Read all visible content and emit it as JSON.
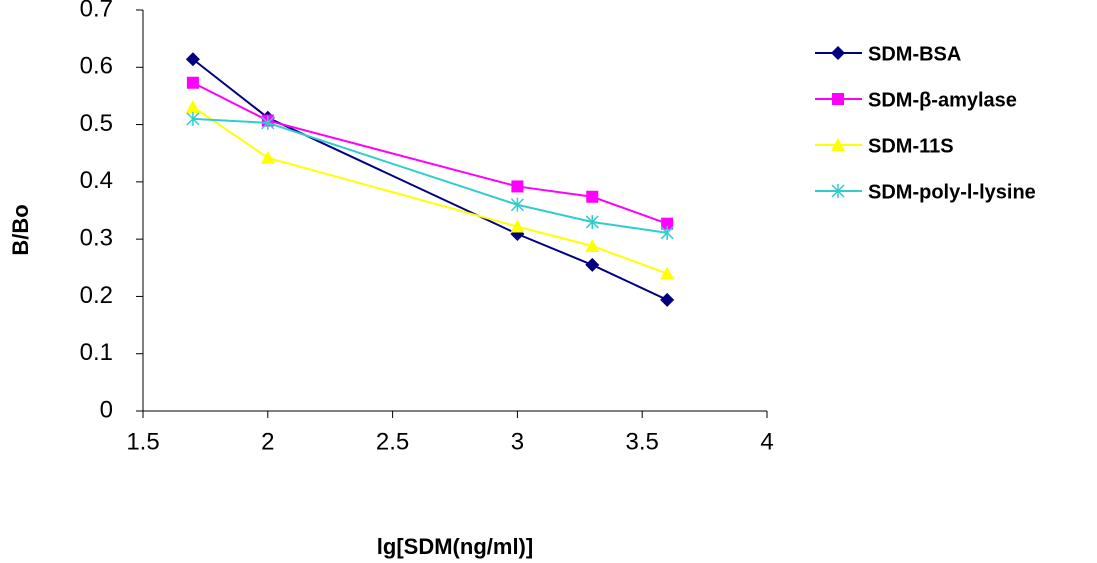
{
  "chart_data": {
    "type": "line",
    "x_label": "lg[SDM(ng/ml)]",
    "y_label": "B/Bo",
    "x": [
      1.7,
      2,
      3,
      3.3,
      3.6
    ],
    "series": [
      {
        "name": "SDM-BSA",
        "color": "#000080",
        "marker": "diamond",
        "values": [
          0.614,
          0.512,
          0.309,
          0.255,
          0.194
        ]
      },
      {
        "name": "SDM-β-amylase",
        "color": "#ff00ff",
        "marker": "square",
        "values": [
          0.573,
          0.507,
          0.392,
          0.374,
          0.327
        ]
      },
      {
        "name": "SDM-11S",
        "color": "#ffff00",
        "marker": "triangle",
        "values": [
          0.531,
          0.442,
          0.322,
          0.288,
          0.24
        ]
      },
      {
        "name": "SDM-poly-l-lysine",
        "color": "#33cccc",
        "marker": "cross",
        "values": [
          0.51,
          0.503,
          0.36,
          0.33,
          0.311
        ]
      }
    ],
    "xlim": [
      1.5,
      4
    ],
    "xticks": [
      1.5,
      2,
      2.5,
      3,
      3.5,
      4
    ],
    "ylim": [
      0,
      0.7
    ],
    "yticks": [
      0,
      0.1,
      0.2,
      0.3,
      0.4,
      0.5,
      0.6,
      0.7
    ],
    "legend": "right"
  }
}
